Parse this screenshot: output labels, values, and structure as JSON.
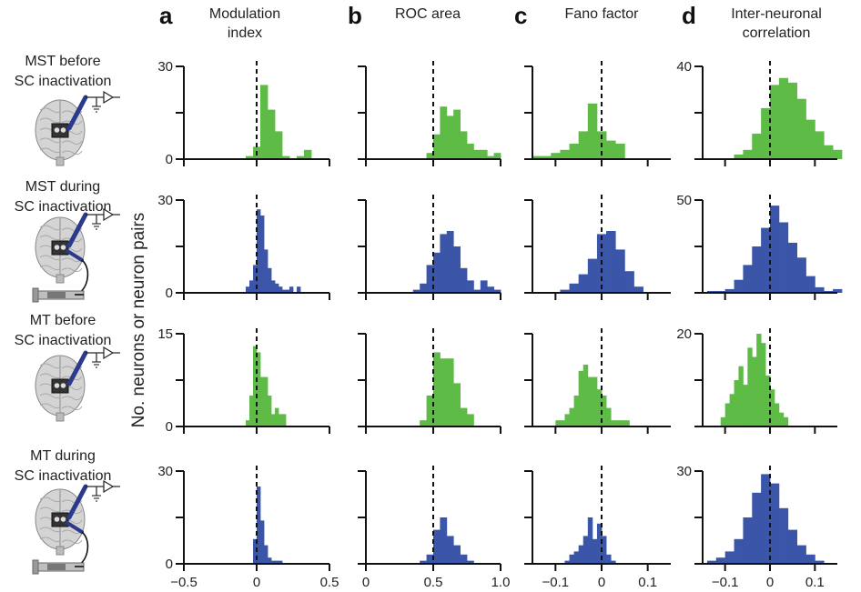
{
  "figure": {
    "ylabel": "No. neurons or neuron pairs",
    "columns": [
      {
        "letter": "a",
        "title_lines": [
          "Modulation",
          "index"
        ]
      },
      {
        "letter": "b",
        "title_lines": [
          "ROC area"
        ]
      },
      {
        "letter": "c",
        "title_lines": [
          "Fano factor"
        ]
      },
      {
        "letter": "d",
        "title_lines": [
          "Inter-neuronal",
          "correlation"
        ]
      }
    ],
    "rows": [
      {
        "label_lines": [
          "MST before",
          "SC inactivation"
        ],
        "inactivated": false,
        "color": "#5dbb46"
      },
      {
        "label_lines": [
          "MST during",
          "SC inactivation"
        ],
        "inactivated": true,
        "color": "#3b55a8"
      },
      {
        "label_lines": [
          "MT before",
          "SC inactivation"
        ],
        "inactivated": false,
        "color": "#5dbb46"
      },
      {
        "label_lines": [
          "MT during",
          "SC inactivation"
        ],
        "inactivated": true,
        "color": "#3b55a8"
      }
    ],
    "x_axes": [
      {
        "ticks": [
          -0.5,
          0,
          0.5
        ],
        "tick_labels": [
          "−0.5",
          "0",
          "0.5"
        ],
        "xlim": [
          -0.5,
          0.5
        ],
        "ref": 0
      },
      {
        "ticks": [
          0,
          0.5,
          1.0
        ],
        "tick_labels": [
          "0",
          "0.5",
          "1.0"
        ],
        "xlim": [
          0,
          1.0
        ],
        "ref": 0.5
      },
      {
        "ticks": [
          -0.1,
          0,
          0.1
        ],
        "tick_labels": [
          "−0.1",
          "0",
          "0.1"
        ],
        "xlim": [
          -0.15,
          0.15
        ],
        "ref": 0
      },
      {
        "ticks": [
          -0.1,
          0,
          0.1
        ],
        "tick_labels": [
          "−0.1",
          "0",
          "0.1"
        ],
        "xlim": [
          -0.15,
          0.15
        ],
        "ref": 0
      }
    ]
  },
  "chart_data": [
    {
      "type": "bar",
      "row": 0,
      "col": 0,
      "ylim": [
        0,
        30
      ],
      "ytick_label": "30",
      "bin_start": -0.125,
      "bin_width": 0.05,
      "values": [
        0,
        1,
        4,
        24,
        16,
        9,
        1,
        0,
        1,
        3,
        0
      ]
    },
    {
      "type": "bar",
      "row": 0,
      "col": 1,
      "ylim": [
        0,
        30
      ],
      "ytick_label": "",
      "bin_start": 0.45,
      "bin_width": 0.05,
      "values": [
        2,
        8,
        17,
        14,
        16,
        9,
        5,
        3,
        3,
        1,
        2
      ]
    },
    {
      "type": "bar",
      "row": 0,
      "col": 2,
      "ylim": [
        0,
        30
      ],
      "ytick_label": "",
      "bin_start": -0.15,
      "bin_width": 0.02,
      "values": [
        1,
        1,
        2,
        3,
        5,
        9,
        18,
        9,
        6,
        5,
        0
      ]
    },
    {
      "type": "bar",
      "row": 0,
      "col": 3,
      "ylim": [
        0,
        40
      ],
      "ytick_label": "40",
      "bin_start": -0.08,
      "bin_width": 0.02,
      "values": [
        2,
        4,
        11,
        22,
        32,
        35,
        33,
        26,
        17,
        12,
        6,
        4
      ]
    },
    {
      "type": "bar",
      "row": 1,
      "col": 0,
      "ylim": [
        0,
        30
      ],
      "ytick_label": "30",
      "bin_start": -0.075,
      "bin_width": 0.025,
      "values": [
        2,
        4,
        9,
        27,
        25,
        14,
        8,
        4,
        3,
        2,
        1,
        1,
        2,
        0,
        2
      ]
    },
    {
      "type": "bar",
      "row": 1,
      "col": 1,
      "ylim": [
        0,
        30
      ],
      "ytick_label": "",
      "bin_start": 0.3,
      "bin_width": 0.05,
      "values": [
        0,
        1,
        3,
        9,
        13,
        19,
        20,
        15,
        8,
        4,
        1,
        4,
        2,
        1
      ]
    },
    {
      "type": "bar",
      "row": 1,
      "col": 2,
      "ylim": [
        0,
        30
      ],
      "ytick_label": "",
      "bin_start": -0.09,
      "bin_width": 0.02,
      "values": [
        1,
        3,
        6,
        11,
        19,
        20,
        14,
        7,
        2,
        0
      ]
    },
    {
      "type": "bar",
      "row": 1,
      "col": 3,
      "ylim": [
        0,
        50
      ],
      "ytick_label": "50",
      "bin_start": -0.14,
      "bin_width": 0.02,
      "values": [
        1,
        1,
        2,
        7,
        15,
        25,
        35,
        47,
        38,
        27,
        19,
        9,
        3,
        1,
        2
      ]
    },
    {
      "type": "bar",
      "row": 2,
      "col": 0,
      "ylim": [
        0,
        15
      ],
      "ytick_label": "15",
      "bin_start": -0.075,
      "bin_width": 0.025,
      "values": [
        1,
        5,
        13,
        12,
        8,
        8,
        5,
        2,
        3,
        2,
        2
      ]
    },
    {
      "type": "bar",
      "row": 2,
      "col": 1,
      "ylim": [
        0,
        15
      ],
      "ytick_label": "",
      "bin_start": 0.4,
      "bin_width": 0.05,
      "values": [
        1,
        5,
        12,
        11,
        11,
        7,
        3,
        2
      ]
    },
    {
      "type": "bar",
      "row": 2,
      "col": 2,
      "ylim": [
        0,
        15
      ],
      "ytick_label": "",
      "bin_start": -0.1,
      "bin_width": 0.01,
      "values": [
        1,
        1,
        2,
        3,
        5,
        9,
        10,
        8,
        8,
        6,
        5,
        3,
        1,
        1,
        1,
        1
      ]
    },
    {
      "type": "bar",
      "row": 2,
      "col": 3,
      "ylim": [
        0,
        20
      ],
      "ytick_label": "20",
      "bin_start": -0.11,
      "bin_width": 0.01,
      "values": [
        2,
        5,
        7,
        10,
        13,
        9,
        17,
        15,
        20,
        18,
        11,
        8,
        5,
        3,
        2
      ]
    },
    {
      "type": "bar",
      "row": 3,
      "col": 0,
      "ylim": [
        0,
        30
      ],
      "ytick_label": "30",
      "bin_start": -0.025,
      "bin_width": 0.025,
      "values": [
        8,
        25,
        14,
        6,
        2,
        1,
        1,
        1
      ]
    },
    {
      "type": "bar",
      "row": 3,
      "col": 1,
      "ylim": [
        0,
        30
      ],
      "ytick_label": "",
      "bin_start": 0.4,
      "bin_width": 0.05,
      "values": [
        1,
        3,
        11,
        15,
        9,
        6,
        3,
        1
      ]
    },
    {
      "type": "bar",
      "row": 3,
      "col": 2,
      "ylim": [
        0,
        30
      ],
      "ytick_label": "",
      "bin_start": -0.08,
      "bin_width": 0.01,
      "values": [
        1,
        3,
        4,
        6,
        9,
        15,
        8,
        13,
        9,
        3,
        1
      ]
    },
    {
      "type": "bar",
      "row": 3,
      "col": 3,
      "ylim": [
        0,
        30
      ],
      "ytick_label": "30",
      "bin_start": -0.14,
      "bin_width": 0.02,
      "values": [
        1,
        2,
        4,
        8,
        15,
        23,
        29,
        26,
        18,
        11,
        6,
        3,
        1
      ]
    }
  ]
}
